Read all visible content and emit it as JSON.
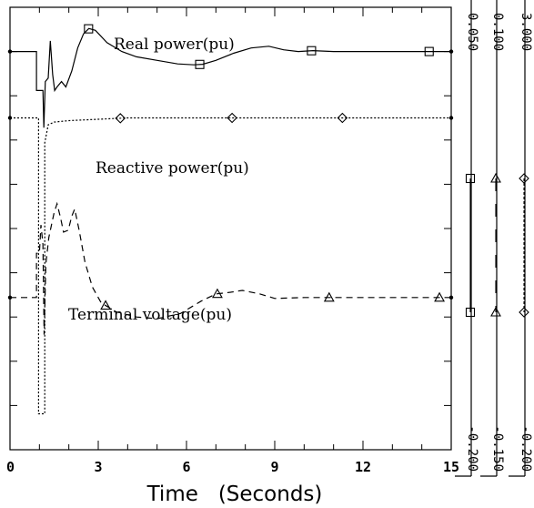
{
  "chart_data": {
    "type": "line",
    "xlabel": "Time   (Seconds)",
    "xlim": [
      0,
      15
    ],
    "x_ticks": [
      "0",
      "3",
      "6",
      "9",
      "12",
      "15"
    ],
    "grid": false,
    "series": [
      {
        "name": "Real power(pu)",
        "line_style": "solid",
        "marker": "square",
        "scale_top": "0.050",
        "scale_bottom": "-0.200",
        "points": [
          [
            0,
            0.025
          ],
          [
            0.9,
            0.025
          ],
          [
            0.9,
            0.003
          ],
          [
            1.12,
            0.003
          ],
          [
            1.15,
            -0.018
          ],
          [
            1.2,
            0.008
          ],
          [
            1.3,
            0.01
          ],
          [
            1.37,
            0.031
          ],
          [
            1.45,
            0.012
          ],
          [
            1.52,
            0.003
          ],
          [
            1.6,
            0.005
          ],
          [
            1.75,
            0.008
          ],
          [
            1.9,
            0.005
          ],
          [
            2.1,
            0.014
          ],
          [
            2.3,
            0.027
          ],
          [
            2.5,
            0.035
          ],
          [
            2.68,
            0.038
          ],
          [
            2.9,
            0.037
          ],
          [
            3.3,
            0.03
          ],
          [
            3.8,
            0.025
          ],
          [
            4.3,
            0.022
          ],
          [
            5.0,
            0.02
          ],
          [
            5.7,
            0.018
          ],
          [
            6.25,
            0.0175
          ],
          [
            6.55,
            0.0178
          ],
          [
            7.0,
            0.02
          ],
          [
            7.6,
            0.024
          ],
          [
            8.2,
            0.027
          ],
          [
            8.8,
            0.028
          ],
          [
            9.3,
            0.026
          ],
          [
            9.8,
            0.025
          ],
          [
            10.3,
            0.0255
          ],
          [
            11,
            0.025
          ],
          [
            12,
            0.025
          ],
          [
            13,
            0.025
          ],
          [
            14.25,
            0.025
          ],
          [
            15,
            0.025
          ]
        ]
      },
      {
        "name": "Reactive power(pu)",
        "line_style": "dashed",
        "marker": "triangle",
        "scale_top": "0.100",
        "scale_bottom": "-0.150",
        "points": [
          [
            0,
            -0.064
          ],
          [
            0.9,
            -0.064
          ],
          [
            0.9,
            -0.039
          ],
          [
            1.0,
            -0.039
          ],
          [
            1.05,
            -0.023
          ],
          [
            1.12,
            -0.034
          ],
          [
            1.16,
            -0.085
          ],
          [
            1.22,
            -0.045
          ],
          [
            1.32,
            -0.03
          ],
          [
            1.5,
            -0.016
          ],
          [
            1.6,
            -0.011
          ],
          [
            1.72,
            -0.019
          ],
          [
            1.82,
            -0.027
          ],
          [
            1.98,
            -0.026
          ],
          [
            2.1,
            -0.018
          ],
          [
            2.2,
            -0.014
          ],
          [
            2.35,
            -0.026
          ],
          [
            2.55,
            -0.044
          ],
          [
            2.8,
            -0.058
          ],
          [
            3.1,
            -0.067
          ],
          [
            3.6,
            -0.072
          ],
          [
            4.3,
            -0.075
          ],
          [
            5.0,
            -0.076
          ],
          [
            5.8,
            -0.073
          ],
          [
            6.5,
            -0.066
          ],
          [
            7.0,
            -0.062
          ],
          [
            7.5,
            -0.061
          ],
          [
            7.9,
            -0.06
          ],
          [
            8.5,
            -0.062
          ],
          [
            9.0,
            -0.0645
          ],
          [
            10,
            -0.064
          ],
          [
            11,
            -0.064
          ],
          [
            12,
            -0.064
          ],
          [
            13,
            -0.064
          ],
          [
            14.5,
            -0.064
          ],
          [
            15,
            -0.064
          ]
        ]
      },
      {
        "name": "Terminal voltage(pu)",
        "line_style": "dotted",
        "marker": "diamond",
        "scale_top": "3.000",
        "scale_bottom": "-0.200",
        "points": [
          [
            0,
            2.2
          ],
          [
            0.97,
            2.2
          ],
          [
            0.97,
            0.06
          ],
          [
            1.18,
            0.06
          ],
          [
            1.18,
            2.02
          ],
          [
            1.3,
            2.15
          ],
          [
            1.5,
            2.17
          ],
          [
            2.0,
            2.18
          ],
          [
            3.0,
            2.19
          ],
          [
            4.0,
            2.2
          ],
          [
            6,
            2.2
          ],
          [
            9,
            2.2
          ],
          [
            12,
            2.2
          ],
          [
            15,
            2.2
          ]
        ]
      }
    ]
  }
}
